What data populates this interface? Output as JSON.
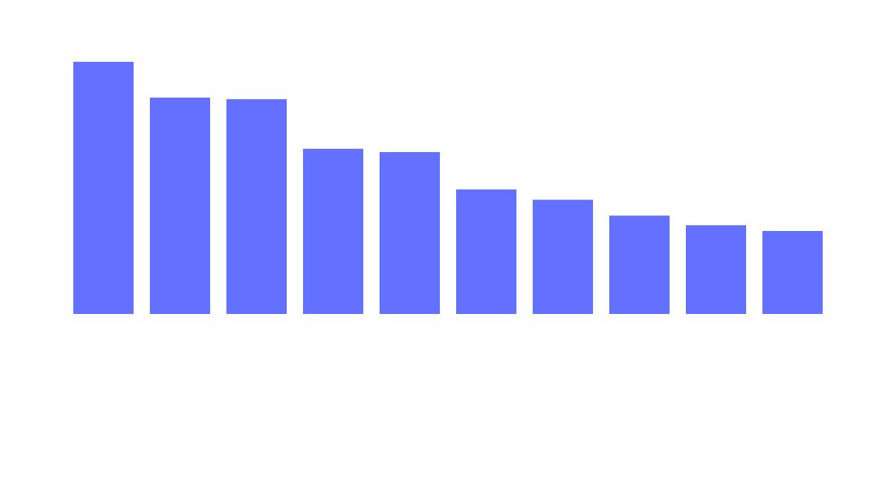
{
  "chart_data": {
    "type": "bar",
    "categories": [
      "",
      "",
      "",
      "",
      "",
      "",
      "",
      "",
      "",
      ""
    ],
    "values": [
      100,
      85.8,
      85.2,
      65.5,
      64.2,
      49.4,
      45.3,
      39.0,
      35.2,
      32.9
    ],
    "ylim": [
      0,
      100
    ],
    "grid": false,
    "legend": "none",
    "bar_color": "#6470FF",
    "background": "#FFFFFF"
  }
}
